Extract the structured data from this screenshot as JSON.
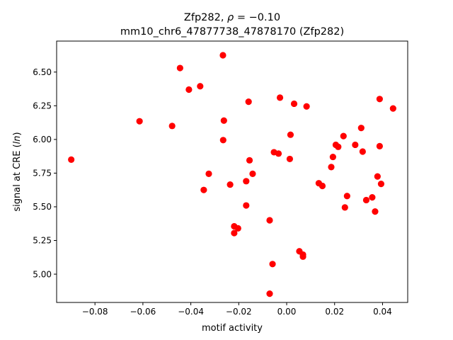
{
  "chart_data": {
    "type": "scatter",
    "title_line1": "Zfp282, ρ = −0.10",
    "title_line2": "mm10_chr6_47877738_47878170 (Zfp282)",
    "xlabel": "motif activity",
    "ylabel": "signal at CRE (ln)",
    "xlim": [
      -0.096,
      0.0505
    ],
    "ylim": [
      4.79,
      6.73
    ],
    "xticks": [
      -0.08,
      -0.06,
      -0.04,
      -0.02,
      0.0,
      0.02,
      0.04
    ],
    "xtick_labels": [
      "−0.08",
      "−0.06",
      "−0.04",
      "−0.02",
      "0.00",
      "0.02",
      "0.04"
    ],
    "yticks": [
      5.0,
      5.25,
      5.5,
      5.75,
      6.0,
      6.25,
      6.5
    ],
    "ytick_labels": [
      "5.00",
      "5.25",
      "5.50",
      "5.75",
      "6.00",
      "6.25",
      "6.50"
    ],
    "marker_color": "#ff0000",
    "grid": false,
    "points": [
      {
        "x": -0.0899,
        "y": 5.85
      },
      {
        "x": -0.0614,
        "y": 6.135
      },
      {
        "x": -0.0478,
        "y": 6.1
      },
      {
        "x": -0.0445,
        "y": 6.53
      },
      {
        "x": -0.0408,
        "y": 6.37
      },
      {
        "x": -0.0361,
        "y": 6.395
      },
      {
        "x": -0.0346,
        "y": 5.625
      },
      {
        "x": -0.0325,
        "y": 5.745
      },
      {
        "x": -0.0266,
        "y": 6.625
      },
      {
        "x": -0.0262,
        "y": 6.14
      },
      {
        "x": -0.0265,
        "y": 5.995
      },
      {
        "x": -0.0236,
        "y": 5.665
      },
      {
        "x": -0.0219,
        "y": 5.355
      },
      {
        "x": -0.0219,
        "y": 5.305
      },
      {
        "x": -0.0203,
        "y": 5.34
      },
      {
        "x": -0.0169,
        "y": 5.69
      },
      {
        "x": -0.0169,
        "y": 5.51
      },
      {
        "x": -0.0159,
        "y": 6.28
      },
      {
        "x": -0.0155,
        "y": 5.845
      },
      {
        "x": -0.0142,
        "y": 5.745
      },
      {
        "x": -0.0071,
        "y": 5.4
      },
      {
        "x": -0.0071,
        "y": 4.855
      },
      {
        "x": -0.0059,
        "y": 5.075
      },
      {
        "x": -0.0053,
        "y": 5.905
      },
      {
        "x": -0.0034,
        "y": 5.895
      },
      {
        "x": -0.0028,
        "y": 6.31
      },
      {
        "x": 0.0013,
        "y": 5.855
      },
      {
        "x": 0.0016,
        "y": 6.035
      },
      {
        "x": 0.0031,
        "y": 6.265
      },
      {
        "x": 0.0053,
        "y": 5.17
      },
      {
        "x": 0.0068,
        "y": 5.145
      },
      {
        "x": 0.0068,
        "y": 5.13
      },
      {
        "x": 0.0083,
        "y": 6.245
      },
      {
        "x": 0.0134,
        "y": 5.675
      },
      {
        "x": 0.0149,
        "y": 5.655
      },
      {
        "x": 0.0186,
        "y": 5.795
      },
      {
        "x": 0.0193,
        "y": 5.87
      },
      {
        "x": 0.0205,
        "y": 5.96
      },
      {
        "x": 0.0215,
        "y": 5.945
      },
      {
        "x": 0.0237,
        "y": 6.025
      },
      {
        "x": 0.0243,
        "y": 5.495
      },
      {
        "x": 0.0252,
        "y": 5.58
      },
      {
        "x": 0.0286,
        "y": 5.96
      },
      {
        "x": 0.0311,
        "y": 6.085
      },
      {
        "x": 0.0317,
        "y": 5.91
      },
      {
        "x": 0.0332,
        "y": 5.55
      },
      {
        "x": 0.0357,
        "y": 5.57
      },
      {
        "x": 0.0369,
        "y": 5.465
      },
      {
        "x": 0.0379,
        "y": 5.725
      },
      {
        "x": 0.0388,
        "y": 6.3
      },
      {
        "x": 0.0388,
        "y": 5.95
      },
      {
        "x": 0.0394,
        "y": 5.67
      },
      {
        "x": 0.0444,
        "y": 6.23
      }
    ]
  }
}
